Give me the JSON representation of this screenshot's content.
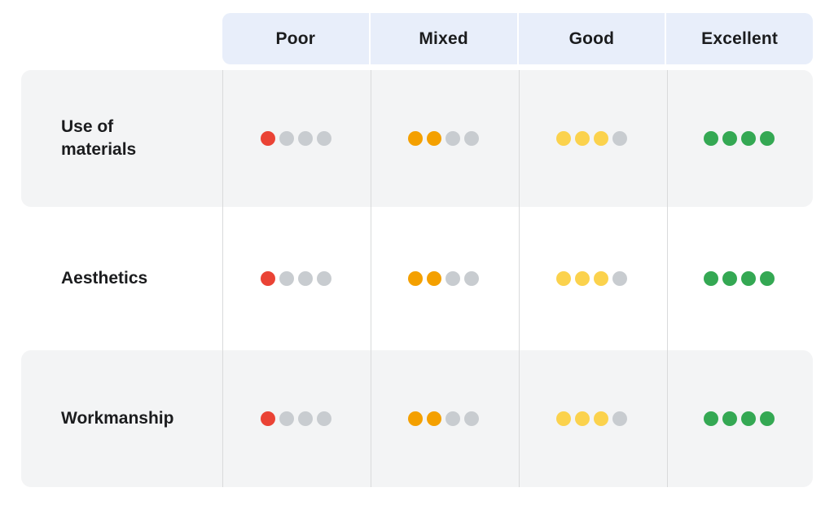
{
  "table": {
    "dots_per_cell": 4,
    "empty_dot_color": "#C8CCD0",
    "columns": [
      {
        "id": "poor",
        "label": "Poor",
        "filled": 1,
        "color": "#EA4335"
      },
      {
        "id": "mixed",
        "label": "Mixed",
        "filled": 2,
        "color": "#F4A000"
      },
      {
        "id": "good",
        "label": "Good",
        "filled": 3,
        "color": "#FBD24D"
      },
      {
        "id": "excellent",
        "label": "Excellent",
        "filled": 4,
        "color": "#34A853"
      }
    ],
    "rows": [
      {
        "id": "use-of-materials",
        "label": "Use of materials"
      },
      {
        "id": "aesthetics",
        "label": "Aesthetics"
      },
      {
        "id": "workmanship",
        "label": "Workmanship"
      }
    ]
  },
  "colors": {
    "page_bg": "#FFFFFF",
    "header_bg": "#E8EEFA",
    "alt_row_bg": "#F3F4F5",
    "divider": "#D9DADB",
    "text": "#1B1C1E"
  }
}
